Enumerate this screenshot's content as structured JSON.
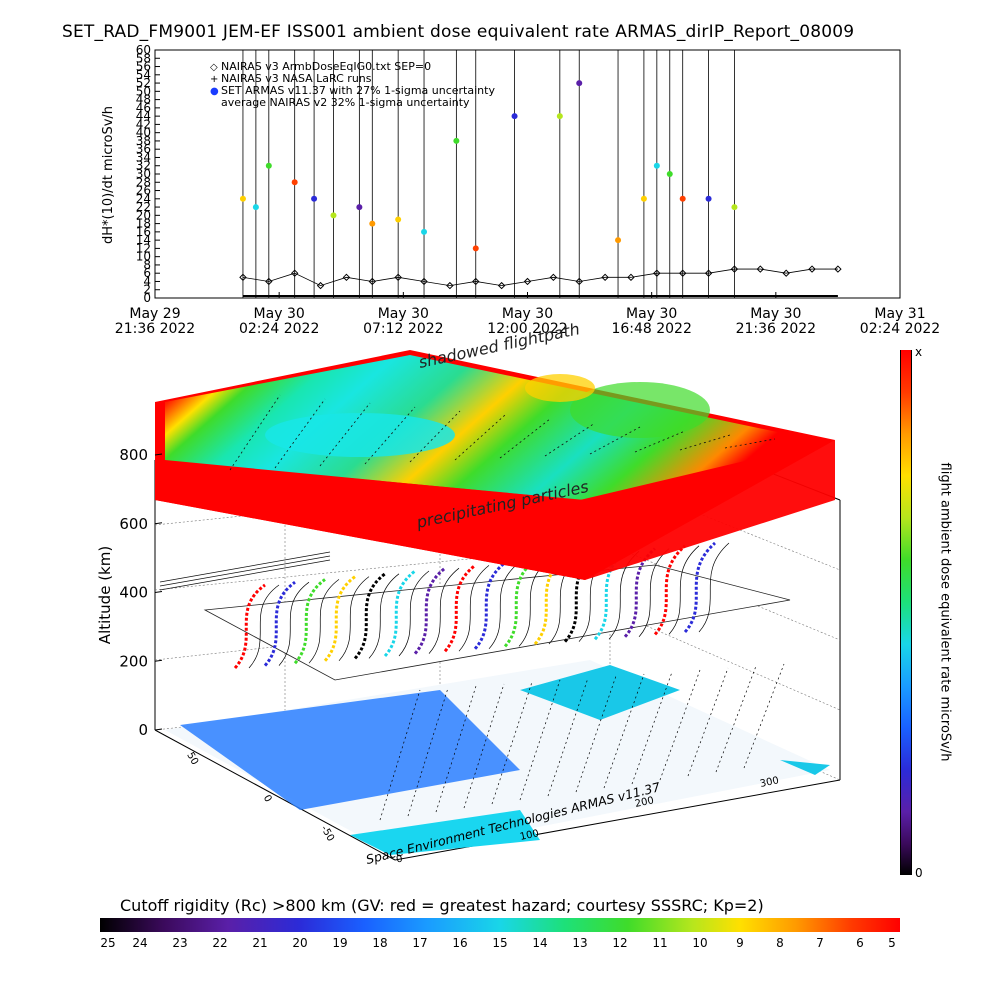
{
  "page": {
    "title": "SET_RAD_FM9001   JEM-EF ISS001 ambient dose equivalent rate ARMAS_dirIP_Report_08009"
  },
  "chart_data": [
    {
      "type": "scatter",
      "ylabel": "dH*(10)/dt microSv/h",
      "ylim": [
        0,
        60
      ],
      "yticks": [
        0,
        2,
        4,
        6,
        8,
        10,
        12,
        14,
        16,
        18,
        20,
        22,
        24,
        26,
        28,
        30,
        32,
        34,
        36,
        38,
        40,
        42,
        44,
        46,
        48,
        50,
        52,
        54,
        56,
        58,
        60
      ],
      "xlim": [
        "2022-05-29 21:36",
        "2022-05-31 02:24"
      ],
      "xticks": [
        {
          "line1": "May 29",
          "line2": "21:36 2022"
        },
        {
          "line1": "May 30",
          "line2": "02:24 2022"
        },
        {
          "line1": "May 30",
          "line2": "07:12 2022"
        },
        {
          "line1": "May 30",
          "line2": "12:00 2022"
        },
        {
          "line1": "May 30",
          "line2": "16:48 2022"
        },
        {
          "line1": "May 30",
          "line2": "21:36 2022"
        },
        {
          "line1": "May 31",
          "line2": "02:24 2022"
        }
      ],
      "legend": [
        {
          "symbol": "◇",
          "label": "NAIRAS v3 ArmbDoseEqIG0.txt SEP=0"
        },
        {
          "symbol": "+",
          "label": "NAIRAS v3 NASA LaRC runs"
        },
        {
          "symbol": "●",
          "label": "SET ARMAS v11.37 with 27% 1-sigma uncertainty"
        },
        {
          "symbol": "",
          "label": "average NAIRAS v2 32% 1-sigma uncertainty"
        }
      ],
      "legend_position": "top-left",
      "series": [
        {
          "name": "NAIRAS v3 ArmbDoseEqIG0.txt SEP=0",
          "marker": "diamond",
          "x": [
            "2022-05-30 01:00",
            "2022-05-30 02:00",
            "2022-05-30 03:00",
            "2022-05-30 04:00",
            "2022-05-30 05:00",
            "2022-05-30 06:00",
            "2022-05-30 07:00",
            "2022-05-30 08:00",
            "2022-05-30 09:00",
            "2022-05-30 10:00",
            "2022-05-30 11:00",
            "2022-05-30 12:00",
            "2022-05-30 13:00",
            "2022-05-30 14:00",
            "2022-05-30 15:00",
            "2022-05-30 16:00",
            "2022-05-30 17:00",
            "2022-05-30 18:00",
            "2022-05-30 19:00",
            "2022-05-30 20:00",
            "2022-05-30 21:00",
            "2022-05-30 22:00",
            "2022-05-30 23:00",
            "2022-05-31 00:00"
          ],
          "y": [
            5,
            4,
            6,
            3,
            5,
            4,
            5,
            4,
            3,
            4,
            3,
            4,
            5,
            4,
            5,
            5,
            6,
            6,
            6,
            7,
            7,
            6,
            7,
            7
          ]
        },
        {
          "name": "SET ARMAS v11.37 with 27% 1-sigma uncertainty",
          "marker": "dot",
          "x": [
            "2022-05-30 01:00",
            "2022-05-30 01:30",
            "2022-05-30 02:00",
            "2022-05-30 03:00",
            "2022-05-30 03:45",
            "2022-05-30 04:30",
            "2022-05-30 05:30",
            "2022-05-30 06:00",
            "2022-05-30 07:00",
            "2022-05-30 08:00",
            "2022-05-30 09:15",
            "2022-05-30 10:00",
            "2022-05-30 11:30",
            "2022-05-30 13:15",
            "2022-05-30 14:00",
            "2022-05-30 15:30",
            "2022-05-30 16:30",
            "2022-05-30 17:00",
            "2022-05-30 17:30",
            "2022-05-30 18:00",
            "2022-05-30 19:00",
            "2022-05-30 20:00"
          ],
          "y": [
            24,
            22,
            32,
            28,
            24,
            20,
            22,
            18,
            19,
            16,
            38,
            12,
            44,
            44,
            52,
            14,
            24,
            32,
            30,
            24,
            24,
            22
          ]
        }
      ]
    },
    {
      "type": "heatmap",
      "ylabel": "Altitude (km)",
      "zticks": [
        0,
        200,
        400,
        600,
        800
      ],
      "lat_ticks": [
        50,
        0,
        -50
      ],
      "lon_ticks": [
        0,
        100,
        200,
        300
      ],
      "annotations": [
        "shadowed flightpath",
        "precipitating particles"
      ],
      "colorbar_label": "flight ambient dose equivalent rate microSv/h",
      "colorbar_max": "x",
      "colorbar_min": "0",
      "credit": "Space Environment Technologies ARMAS v11.37",
      "rc_title": "Cutoff rigidity (Rc) >800 km (GV: red = greatest hazard; courtesy SSSRC; Kp=2)",
      "rc_ticks": [
        "25",
        "24",
        "23",
        "22",
        "21",
        "20",
        "19",
        "18",
        "17",
        "16",
        "15",
        "14",
        "13",
        "12",
        "11",
        "10",
        "9",
        "8",
        "7",
        "6",
        "5"
      ]
    }
  ]
}
